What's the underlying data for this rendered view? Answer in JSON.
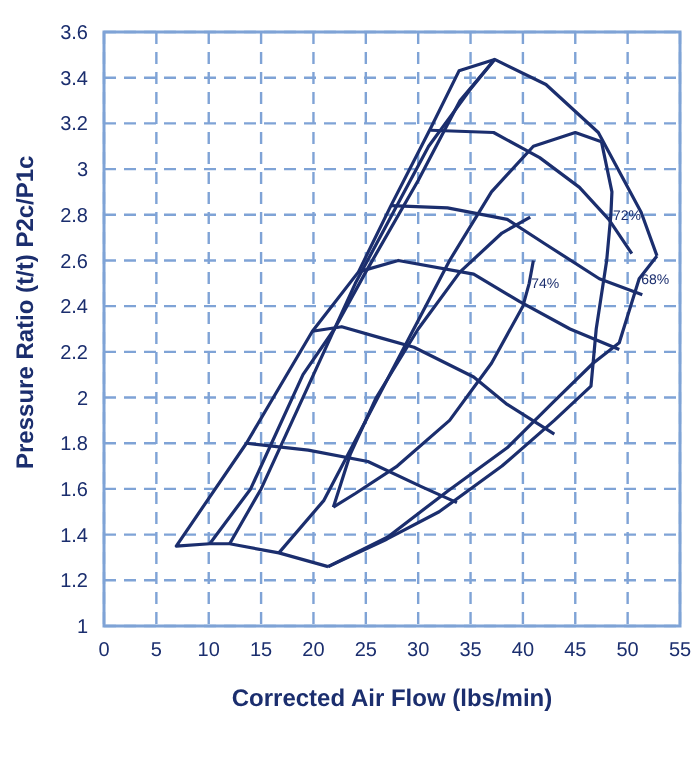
{
  "chart_data": {
    "type": "line",
    "xlabel": "Corrected Air Flow (lbs/min)",
    "ylabel": "Pressure Ratio (t/t) P2c/P1c",
    "xlim": [
      0,
      55
    ],
    "xticks": [
      0,
      5,
      10,
      15,
      20,
      25,
      30,
      35,
      40,
      45,
      50,
      55
    ],
    "ylim": [
      1,
      3.6
    ],
    "yticks": [
      1,
      1.2,
      1.4,
      1.6,
      1.8,
      2,
      2.2,
      2.4,
      2.6,
      2.8,
      3,
      3.2,
      3.4,
      3.6
    ],
    "grid": true,
    "marker": "none",
    "line_style": "solid",
    "series": [
      {
        "color": "#1b2e6e",
        "x": [
          21.4,
          16.7,
          12,
          10.1,
          6.9,
          13.6,
          19.9,
          24.3,
          27.4,
          31.2,
          33.9,
          37.3,
          42.2,
          47.2,
          51.3,
          52.8
        ],
        "values": [
          1.26,
          1.32,
          1.36,
          1.36,
          1.35,
          1.8,
          2.29,
          2.55,
          2.84,
          3.18,
          3.43,
          3.48,
          3.37,
          3.16,
          2.81,
          2.62
        ]
      },
      {
        "color": "#1b2e6e",
        "x": [
          21.4,
          27.1,
          32.8,
          38.5,
          42.9,
          46.7,
          49.2,
          51.1,
          52.8
        ],
        "values": [
          1.26,
          1.39,
          1.59,
          1.78,
          1.98,
          2.15,
          2.24,
          2.52,
          2.62
        ]
      },
      {
        "color": "#1b2e6e",
        "x": [
          13.6,
          19.5,
          25.2,
          30.3,
          33.7
        ],
        "values": [
          1.8,
          1.77,
          1.72,
          1.61,
          1.54
        ]
      },
      {
        "color": "#1b2e6e",
        "x": [
          19.9,
          22.7,
          26.5,
          29.6,
          35.3,
          38.5,
          43
        ],
        "values": [
          2.29,
          2.31,
          2.26,
          2.22,
          2.09,
          1.97,
          1.84
        ]
      },
      {
        "color": "#1b2e6e",
        "x": [
          24.3,
          28.1,
          35.3,
          39.7,
          44.5,
          49.2
        ],
        "values": [
          2.55,
          2.6,
          2.54,
          2.42,
          2.3,
          2.21
        ]
      },
      {
        "color": "#1b2e6e",
        "x": [
          27.4,
          32.8,
          38.5,
          42.2,
          47.3,
          51.4
        ],
        "values": [
          2.84,
          2.83,
          2.78,
          2.67,
          2.52,
          2.45
        ]
      },
      {
        "color": "#1b2e6e",
        "x": [
          31.2,
          37.2,
          41.6,
          45.4,
          48.2,
          50.4
        ],
        "values": [
          3.17,
          3.16,
          3.05,
          2.92,
          2.78,
          2.63
        ]
      },
      {
        "color": "#1b2e6e",
        "x": [
          10.1,
          14,
          16,
          19,
          22,
          25,
          30,
          34,
          37.3
        ],
        "values": [
          1.36,
          1.6,
          1.8,
          2.1,
          2.3,
          2.55,
          2.95,
          3.3,
          3.48
        ]
      },
      {
        "color": "#1b2e6e",
        "x": [
          12,
          15,
          18,
          21,
          24,
          27.5,
          31,
          35,
          37.3
        ],
        "values": [
          1.36,
          1.6,
          1.9,
          2.2,
          2.5,
          2.8,
          3.1,
          3.35,
          3.48
        ]
      },
      {
        "color": "#1b2e6e",
        "x": [
          16.7,
          21,
          25,
          29,
          33,
          37,
          41,
          45,
          47.5
        ],
        "values": [
          1.32,
          1.55,
          1.9,
          2.25,
          2.6,
          2.9,
          3.1,
          3.16,
          3.12
        ]
      },
      {
        "color": "#1b2e6e",
        "x": [
          21.4,
          27,
          32,
          38,
          43,
          46.5,
          47,
          48,
          48.4,
          48.5,
          47.5
        ],
        "values": [
          1.26,
          1.38,
          1.5,
          1.7,
          1.9,
          2.05,
          2.3,
          2.6,
          2.8,
          2.9,
          3.12
        ]
      },
      {
        "color": "#1b2e6e",
        "x": [
          21.9,
          23.5,
          26,
          30,
          34,
          38,
          40.7
        ],
        "values": [
          1.52,
          1.75,
          2,
          2.3,
          2.55,
          2.72,
          2.79
        ]
      },
      {
        "color": "#1b2e6e",
        "x": [
          21.9,
          24,
          28,
          33,
          37,
          40,
          40.6,
          41
        ],
        "values": [
          1.52,
          1.58,
          1.7,
          1.9,
          2.15,
          2.4,
          2.5,
          2.6
        ]
      }
    ],
    "annotations": [
      {
        "text": "72%",
        "x": 48.4,
        "y": 2.8
      },
      {
        "text": "68%",
        "x": 51.1,
        "y": 2.52
      },
      {
        "text": "74%",
        "x": 40.6,
        "y": 2.5
      }
    ]
  }
}
